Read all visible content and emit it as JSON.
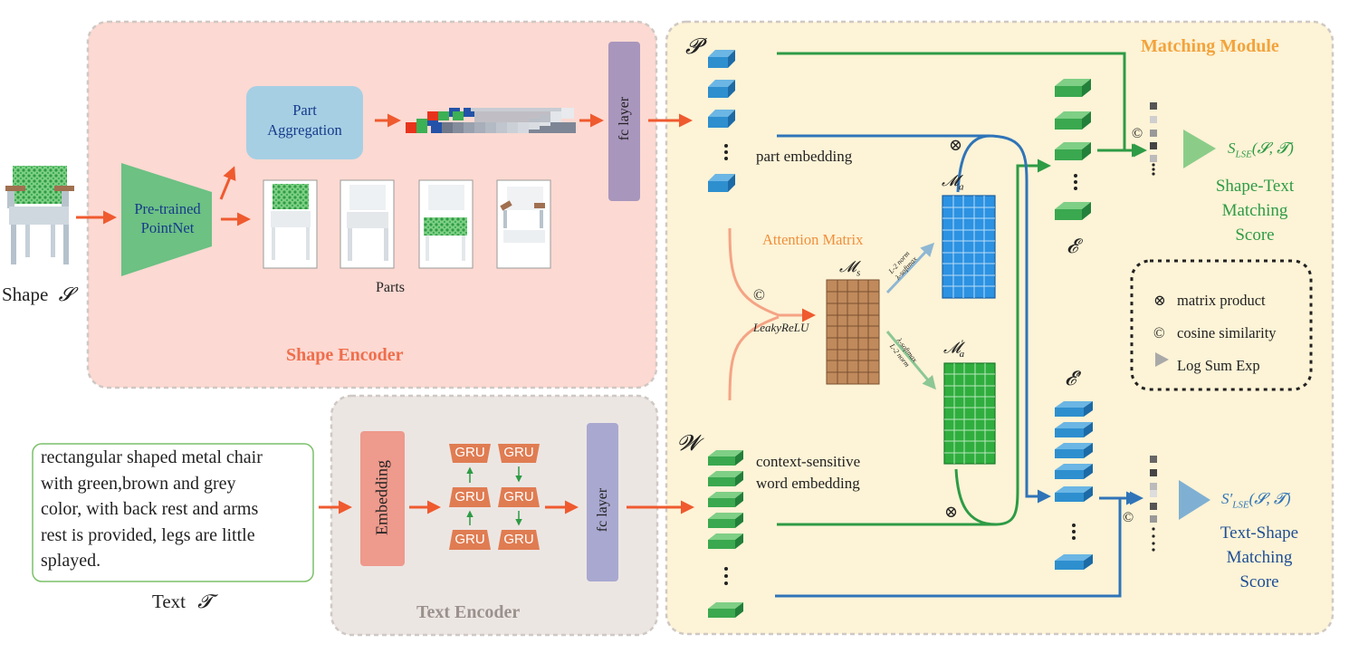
{
  "shape": {
    "label": "Shape",
    "symbol": "𝓢"
  },
  "text": {
    "label": "Text",
    "symbol": "𝓣",
    "lines": [
      "rectangular shaped metal chair",
      "with green,brown and grey",
      "color, with back rest and arms",
      "rest is provided, legs are little",
      "splayed."
    ]
  },
  "shape_encoder": {
    "title": "Shape Encoder",
    "pointnet": [
      "Pre-trained",
      "PointNet"
    ],
    "part_aggregation": [
      "Part",
      "Aggregation"
    ],
    "parts_label": "Parts",
    "fc_label": "fc layer"
  },
  "text_encoder": {
    "title": "Text Encoder",
    "embedding_label": "Embedding",
    "gru_label": "GRU",
    "fc_label": "fc layer"
  },
  "matching": {
    "title": "Matching Module",
    "P": "𝓟",
    "W": "𝓦",
    "part_embedding": "part embedding",
    "word_embedding": [
      "context-sensitive",
      "word embedding"
    ],
    "attention_matrix": "Attention Matrix",
    "leaky": "LeakyReLU",
    "cos": "©",
    "mat": "⊗",
    "Ms": "𝓜",
    "Ms_sub": "s",
    "Ma": "𝓜",
    "Ma_sub": "a",
    "Ma2_sup": "′",
    "l2_top": [
      "L-2 norm",
      "λ-softmax"
    ],
    "l2_bottom": [
      "λ-softmax",
      "L-2 norm"
    ],
    "E": "𝓔",
    "E2": "𝓔′",
    "s_top": {
      "name": "S",
      "sub": "LSE",
      "args": "(𝓢, 𝓣)"
    },
    "s_top_label": [
      "Shape-Text",
      "Matching",
      "Score"
    ],
    "s_bottom": {
      "name": "S′",
      "sub": "LSE",
      "args": "(𝓢, 𝓣)"
    },
    "s_bottom_label": [
      "Text-Shape",
      "Matching",
      "Score"
    ],
    "legend": [
      {
        "sym": "⊗",
        "text": "matrix product"
      },
      {
        "sym": "©",
        "text": "cosine similarity"
      },
      {
        "sym": "▶",
        "text": "Log Sum Exp"
      }
    ]
  },
  "colors": {
    "shape_panel": "#fcd9d2",
    "text_panel": "#ece6e3",
    "match_panel": "#fdf3d6",
    "orange": "#ef5a2f",
    "green": "#2e9b45",
    "blue": "#2f74b8",
    "matching_title": "#f3a33c",
    "shape_title": "#ef6e4c",
    "text_title": "#9a918c"
  }
}
